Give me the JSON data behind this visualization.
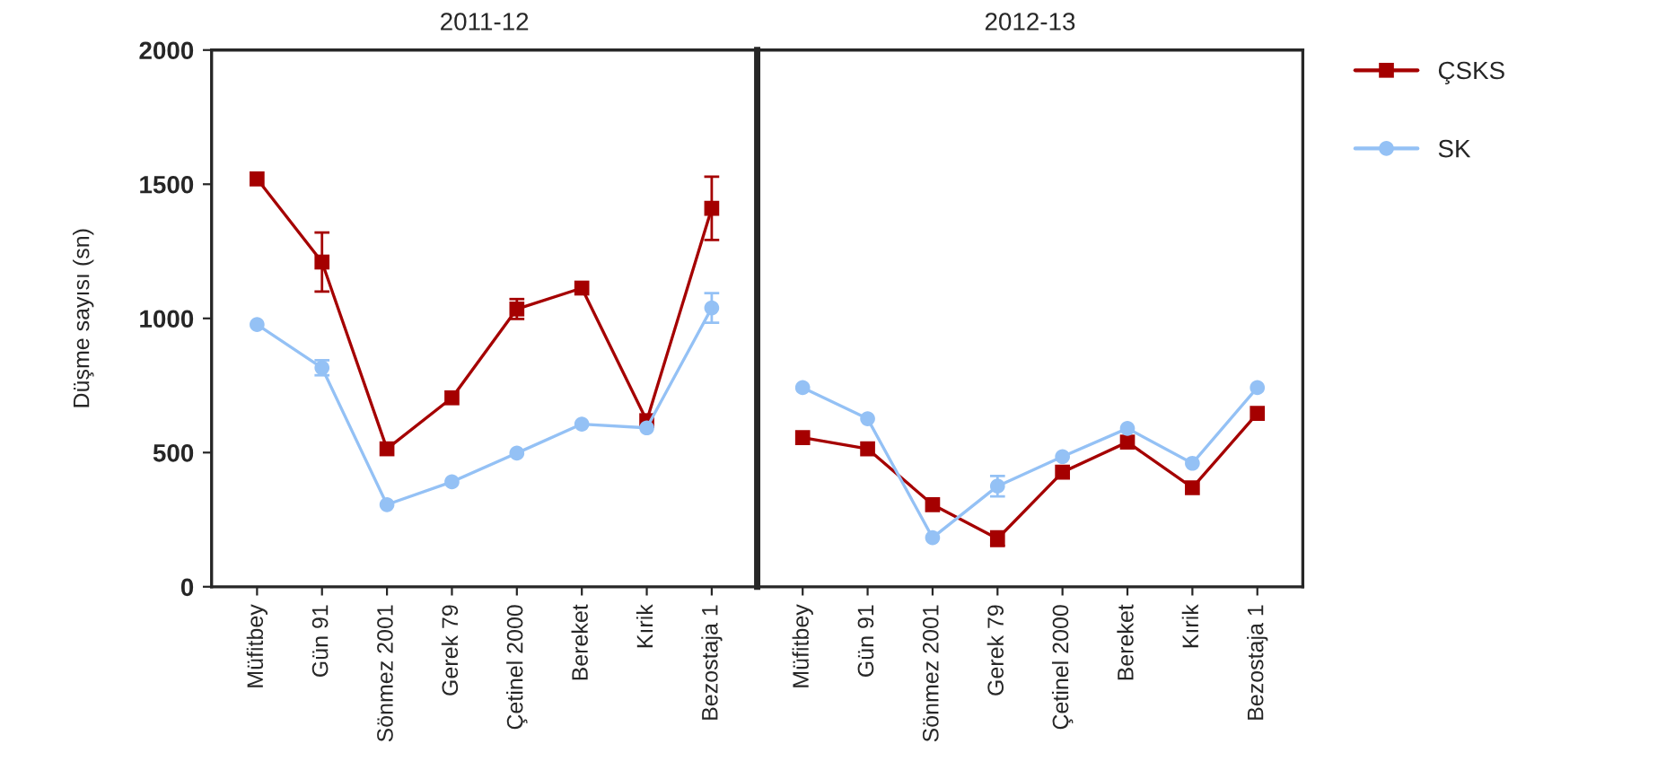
{
  "chart_data": [
    {
      "type": "line",
      "title": "2011-12",
      "ylabel": "Düşme sayısı (sn)",
      "categories": [
        "Müfitbey",
        "Gün 91",
        "Sönmez 2001",
        "Gerek 79",
        "Çetinel 2000",
        "Bereket",
        "Kırik",
        "Bezostaja 1"
      ],
      "ylim": [
        0,
        2000
      ],
      "yticks": [
        0,
        500,
        1000,
        1500,
        2000
      ],
      "grid": false,
      "legend": "top right",
      "series": [
        {
          "name": "ÇSKS",
          "color": "#a50000",
          "marker": "square",
          "values": [
            1520,
            1210,
            514,
            704,
            1035,
            1113,
            619,
            1410
          ],
          "errors": [
            null,
            110,
            null,
            null,
            37,
            null,
            null,
            118
          ]
        },
        {
          "name": "SK",
          "color": "#94c1f5",
          "marker": "circle",
          "values": [
            977,
            816,
            306,
            391,
            498,
            606,
            592,
            1039
          ],
          "errors": [
            null,
            28,
            null,
            null,
            null,
            null,
            null,
            55
          ]
        }
      ]
    },
    {
      "type": "line",
      "title": "2012-13",
      "categories": [
        "Müfitbey",
        "Gün 91",
        "Sönmez 2001",
        "Gerek 79",
        "Çetinel 2000",
        "Bereket",
        "Kırik",
        "Bezostaja 1"
      ],
      "ylim": [
        0,
        2000
      ],
      "tick_labels": "x",
      "grid": false,
      "series": [
        {
          "color": "#a50000",
          "marker": "square",
          "values": [
            556,
            514,
            306,
            179,
            427,
            539,
            369,
            646
          ],
          "errors": [
            null,
            null,
            null,
            27,
            null,
            null,
            null,
            null
          ]
        },
        {
          "color": "#94c1f5",
          "marker": "circle",
          "values": [
            742,
            626,
            183,
            375,
            485,
            590,
            460,
            742
          ],
          "errors": [
            null,
            null,
            null,
            38,
            null,
            null,
            null,
            null
          ]
        }
      ]
    }
  ]
}
